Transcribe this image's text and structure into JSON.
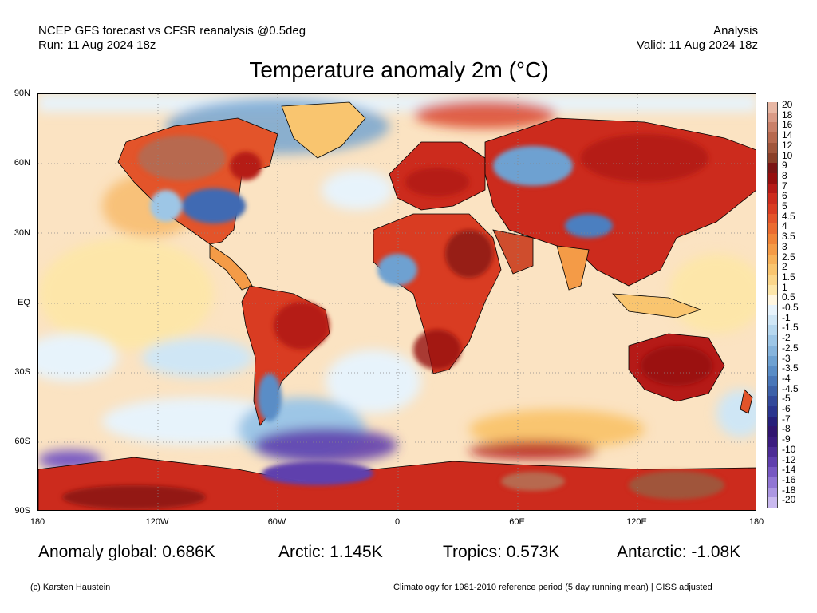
{
  "header": {
    "product": "NCEP GFS forecast vs CFSR reanalysis @0.5deg",
    "run": "Run: 11 Aug 2024 18z",
    "kind": "Analysis",
    "valid": "Valid: 11 Aug 2024 18z"
  },
  "title": "Temperature anomaly 2m (°C)",
  "map": {
    "projection": "equirectangular",
    "lat_labels": [
      "90N",
      "60N",
      "30N",
      "EQ",
      "30S",
      "60S",
      "90S"
    ],
    "lon_labels": [
      "180",
      "120W",
      "60W",
      "0",
      "60E",
      "120E",
      "180"
    ],
    "ocean_base_color": "#fbe3c2",
    "land_outline_color": "#000000",
    "grid_color": "#888888",
    "anomaly_regions": [
      {
        "label": "Canada",
        "color": "#b8402c"
      },
      {
        "label": "Central USA",
        "color": "#3f6ab3"
      },
      {
        "label": "Europe",
        "color": "#c43a2a"
      },
      {
        "label": "Sahara / Middle East",
        "color": "#cf4d2d"
      },
      {
        "label": "Siberia",
        "color": "#c4402a"
      },
      {
        "label": "Tibet",
        "color": "#4c7fc0"
      },
      {
        "label": "Australia",
        "color": "#b52b24"
      },
      {
        "label": "South America East",
        "color": "#d6502f"
      },
      {
        "label": "West Antarctica / Southern Ocean",
        "color": "#6a4cc0"
      },
      {
        "label": "East Antarctica",
        "color": "#b33a2a"
      }
    ]
  },
  "colorbar": {
    "labels": [
      "20",
      "18",
      "16",
      "14",
      "12",
      "10",
      "9",
      "8",
      "7",
      "6",
      "5",
      "4.5",
      "4",
      "3.5",
      "3",
      "2.5",
      "2",
      "1.5",
      "1",
      "0.5",
      "-0.5",
      "-1",
      "-1.5",
      "-2",
      "-2.5",
      "-3",
      "-3.5",
      "-4",
      "-4.5",
      "-5",
      "-6",
      "-7",
      "-8",
      "-9",
      "-10",
      "-12",
      "-14",
      "-16",
      "-18",
      "-20"
    ],
    "colors": [
      "#e8b7a4",
      "#d99a86",
      "#c98069",
      "#b7694f",
      "#a0553b",
      "#8a3f28",
      "#7a1414",
      "#950e0e",
      "#b51a17",
      "#cc2b1d",
      "#d93c22",
      "#e3542a",
      "#ea6b30",
      "#f08438",
      "#f49b47",
      "#f7b25a",
      "#f9c56f",
      "#fbd68a",
      "#fde6a9",
      "#fff6e0",
      "#e7f3fb",
      "#cfe6f5",
      "#b6d7ee",
      "#9dc6e6",
      "#86b4dc",
      "#6ea1d1",
      "#5a8dc6",
      "#4a77b8",
      "#3d61a8",
      "#32499a",
      "#2a358e",
      "#261f7a",
      "#30156f",
      "#3b1c7f",
      "#4c2c95",
      "#5f3fad",
      "#7758c2",
      "#9176d4",
      "#ac97e2",
      "#c9b9ef"
    ]
  },
  "stats": {
    "global": "Anomaly global: 0.686K",
    "arctic": "Arctic: 1.145K",
    "tropics": "Tropics: 0.573K",
    "antarctic": "Antarctic: -1.08K"
  },
  "footer": {
    "credit": "(c) Karsten Haustein",
    "note": "Climatology for 1981-2010 reference period (5 day running mean) | GISS adjusted"
  }
}
